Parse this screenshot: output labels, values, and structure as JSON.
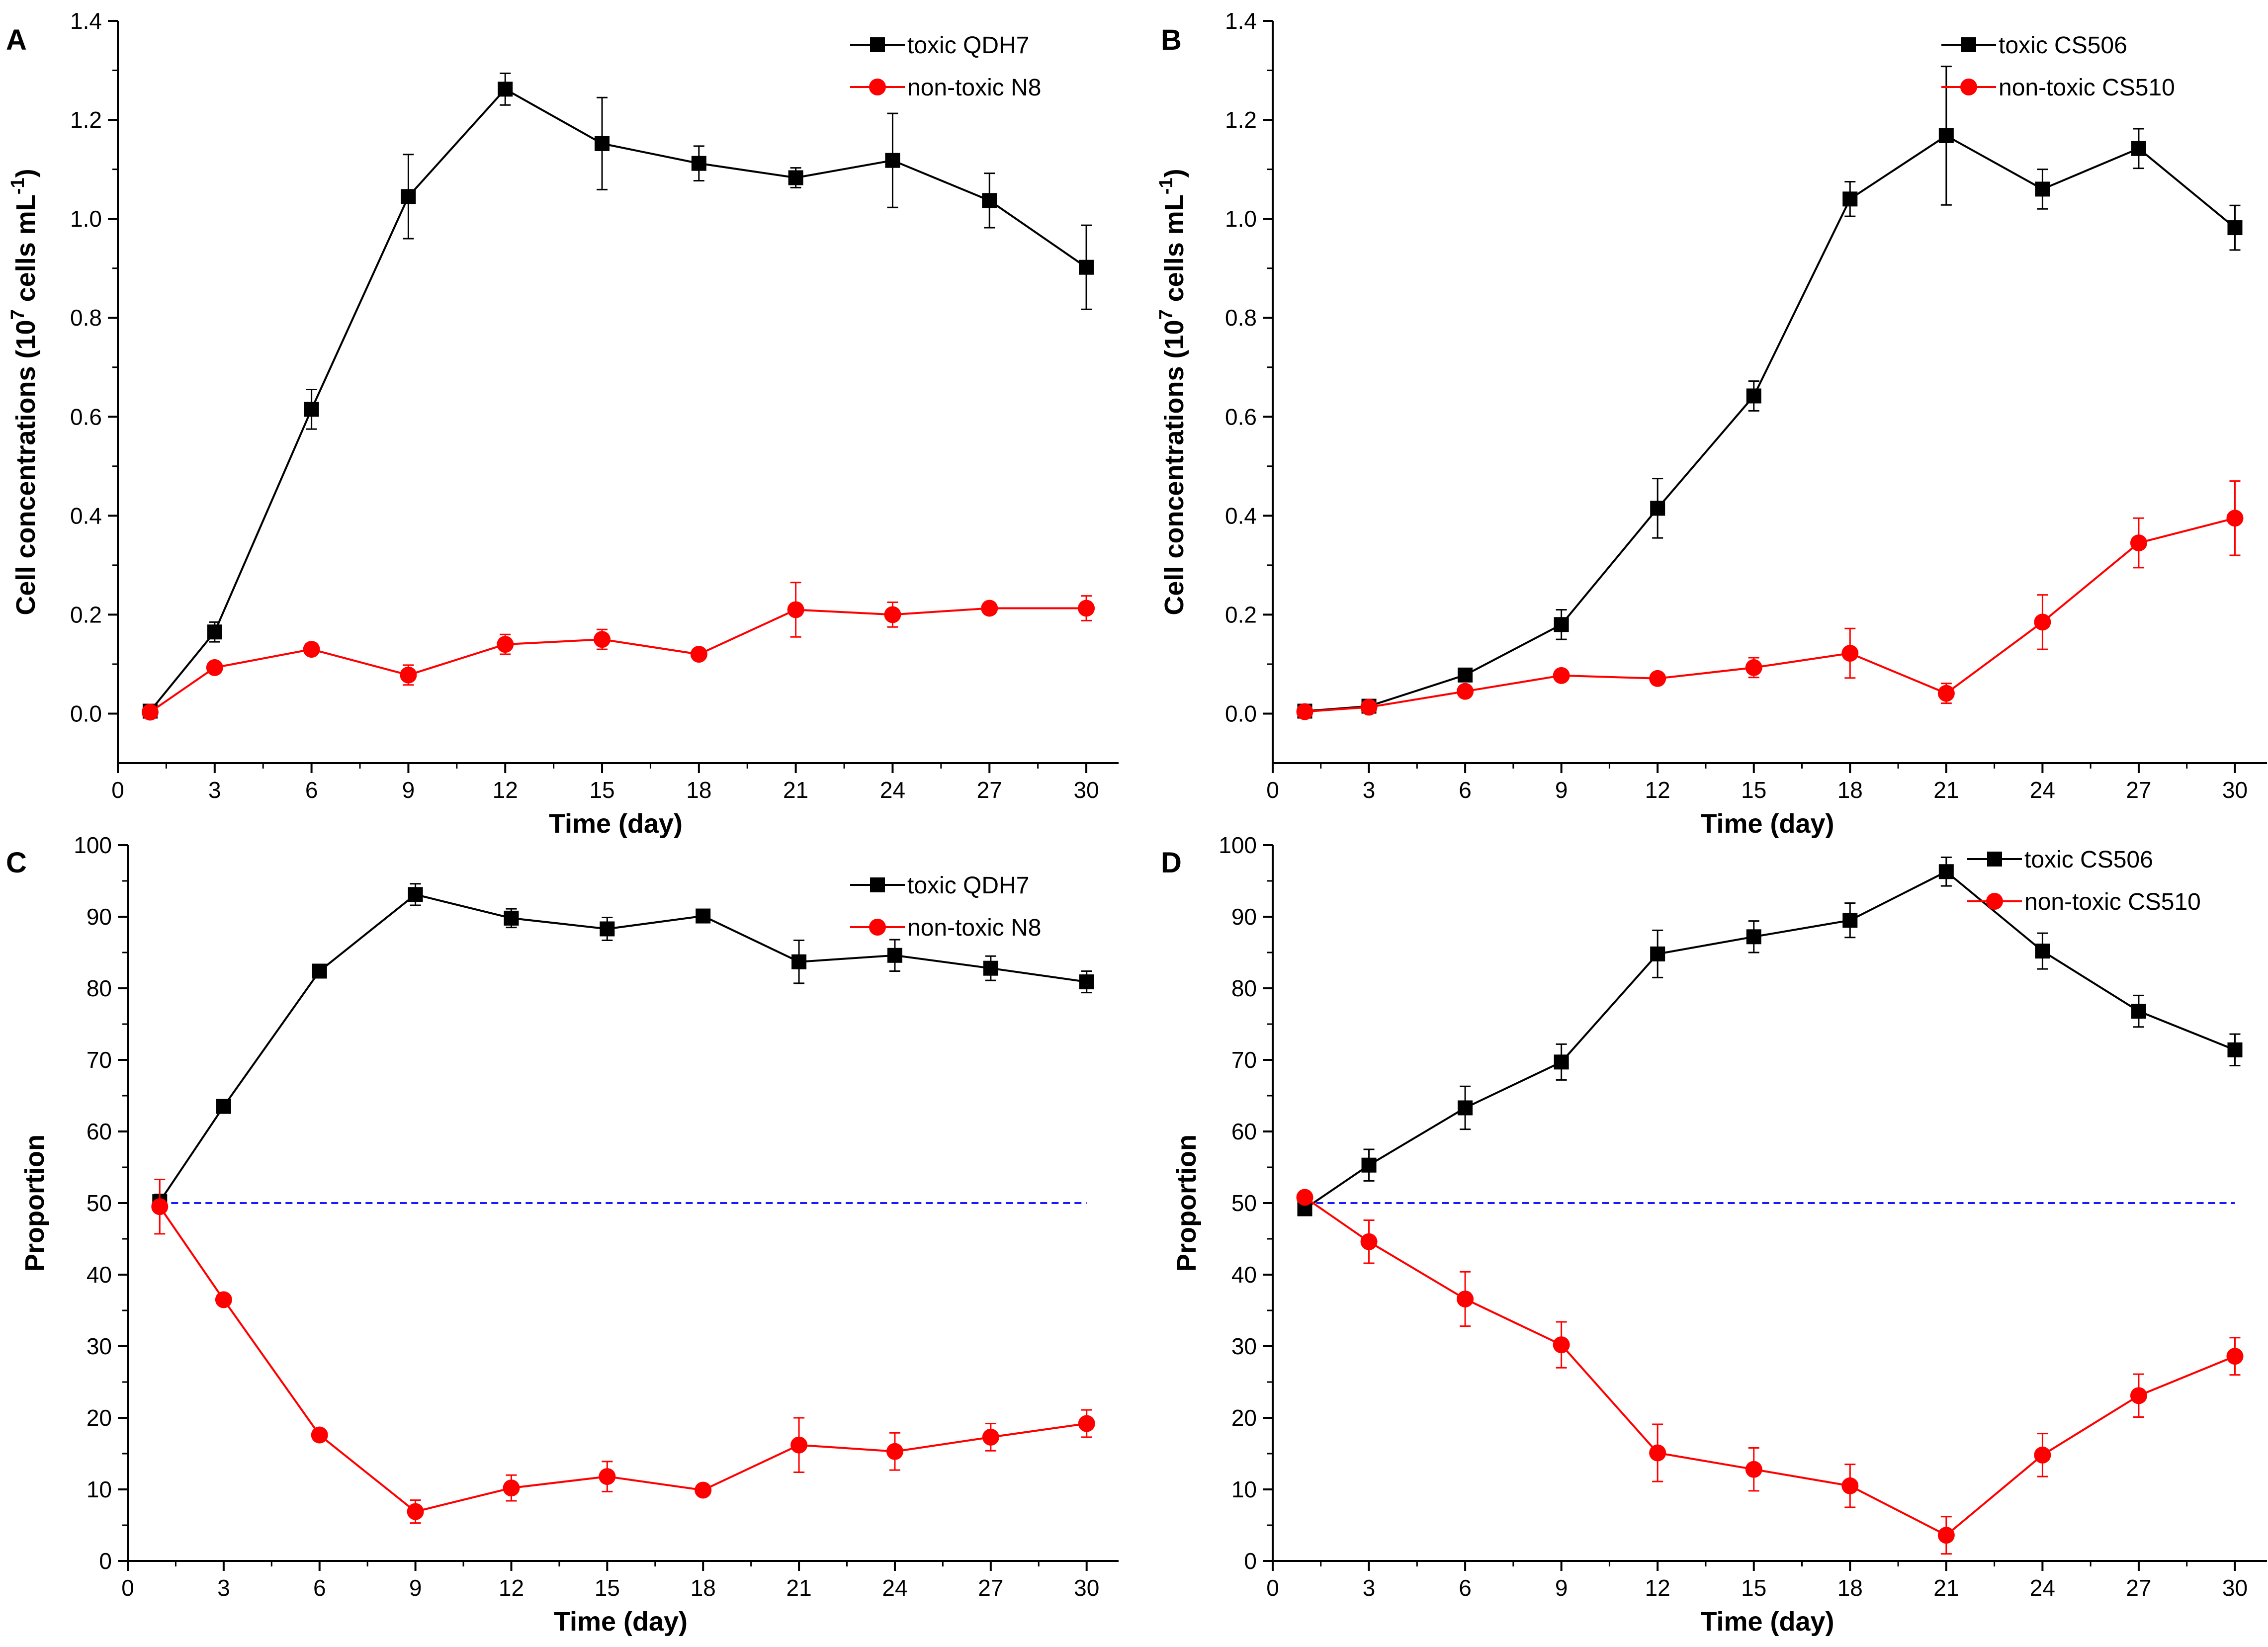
{
  "chart_data": [
    {
      "panel": "A",
      "type": "line",
      "xlabel": "Time (day)",
      "ylabel": "Cell concentrations (10",
      "ylabel_sup": "7",
      "ylabel_unit": " cells mL",
      "ylabel_unit_sup": "-1",
      "ylabel_close": ")",
      "x": [
        1,
        3,
        6,
        9,
        12,
        15,
        18,
        21,
        24,
        27,
        30
      ],
      "xticks": [
        "0",
        "3",
        "6",
        "9",
        "12",
        "15",
        "18",
        "21",
        "24",
        "27",
        "30"
      ],
      "xtick_values": [
        0,
        3,
        6,
        9,
        12,
        15,
        18,
        21,
        24,
        27,
        30
      ],
      "yticks": [
        "0.0",
        "0.2",
        "0.4",
        "0.6",
        "0.8",
        "1.0",
        "1.2",
        "1.4"
      ],
      "ytick_values": [
        0,
        0.2,
        0.4,
        0.6,
        0.8,
        1.0,
        1.2,
        1.4
      ],
      "xlim": [
        0,
        31
      ],
      "ylim": [
        -0.1,
        1.4
      ],
      "legend_position": "top-right",
      "series": [
        {
          "name": "toxic QDH7",
          "color": "#000000",
          "marker": "square",
          "values": [
            0.005,
            0.165,
            0.615,
            1.045,
            1.262,
            1.152,
            1.112,
            1.083,
            1.118,
            1.037,
            0.902
          ],
          "errors": [
            0.005,
            0.02,
            0.04,
            0.085,
            0.032,
            0.093,
            0.035,
            0.02,
            0.095,
            0.055,
            0.085
          ]
        },
        {
          "name": "non-toxic N8",
          "color": "#ff0000",
          "marker": "circle",
          "values": [
            0.003,
            0.093,
            0.13,
            0.078,
            0.14,
            0.15,
            0.12,
            0.21,
            0.2,
            0.213,
            0.213
          ],
          "errors": [
            0.005,
            0.008,
            0.01,
            0.02,
            0.02,
            0.02,
            0.008,
            0.055,
            0.025,
            0.012,
            0.025
          ]
        }
      ]
    },
    {
      "panel": "B",
      "type": "line",
      "xlabel": "Time (day)",
      "ylabel": "Cell concentrations (10",
      "ylabel_sup": "7",
      "ylabel_unit": " cells mL",
      "ylabel_unit_sup": "-1",
      "ylabel_close": ")",
      "x": [
        1,
        3,
        6,
        9,
        12,
        15,
        18,
        21,
        24,
        27,
        30
      ],
      "xticks": [
        "0",
        "3",
        "6",
        "9",
        "12",
        "15",
        "18",
        "21",
        "24",
        "27",
        "30"
      ],
      "xtick_values": [
        0,
        3,
        6,
        9,
        12,
        15,
        18,
        21,
        24,
        27,
        30
      ],
      "yticks": [
        "0.0",
        "0.2",
        "0.4",
        "0.6",
        "0.8",
        "1.0",
        "1.2",
        "1.4"
      ],
      "ytick_values": [
        0,
        0.2,
        0.4,
        0.6,
        0.8,
        1.0,
        1.2,
        1.4
      ],
      "xlim": [
        0,
        31
      ],
      "ylim": [
        -0.1,
        1.4
      ],
      "legend_position": "top-right",
      "series": [
        {
          "name": "toxic CS506",
          "color": "#000000",
          "marker": "square",
          "values": [
            0.005,
            0.015,
            0.078,
            0.18,
            0.415,
            0.642,
            1.04,
            1.168,
            1.06,
            1.142,
            0.982
          ],
          "errors": [
            0.004,
            0.005,
            0.01,
            0.03,
            0.06,
            0.03,
            0.035,
            0.14,
            0.04,
            0.04,
            0.045
          ]
        },
        {
          "name": "non-toxic CS510",
          "color": "#ff0000",
          "marker": "circle",
          "values": [
            0.004,
            0.013,
            0.045,
            0.077,
            0.071,
            0.093,
            0.122,
            0.041,
            0.185,
            0.345,
            0.395
          ],
          "errors": [
            0.004,
            0.005,
            0.01,
            0.008,
            0.008,
            0.02,
            0.05,
            0.02,
            0.055,
            0.05,
            0.075
          ]
        }
      ]
    },
    {
      "panel": "C",
      "type": "line",
      "xlabel": "Time (day)",
      "ylabel": "Proportion",
      "x": [
        1,
        3,
        6,
        9,
        12,
        15,
        18,
        21,
        24,
        27,
        30
      ],
      "xticks": [
        "0",
        "3",
        "6",
        "9",
        "12",
        "15",
        "18",
        "21",
        "24",
        "27",
        "30"
      ],
      "xtick_values": [
        0,
        3,
        6,
        9,
        12,
        15,
        18,
        21,
        24,
        27,
        30
      ],
      "yticks": [
        "0",
        "10",
        "20",
        "30",
        "40",
        "50",
        "60",
        "70",
        "80",
        "90",
        "100"
      ],
      "ytick_values": [
        0,
        10,
        20,
        30,
        40,
        50,
        60,
        70,
        80,
        90,
        100
      ],
      "xlim": [
        0,
        31
      ],
      "ylim": [
        0,
        100
      ],
      "reference_line": 50,
      "legend_position": "top-right",
      "series": [
        {
          "name": "toxic QDH7",
          "color": "#000000",
          "marker": "square",
          "values": [
            50.2,
            63.5,
            82.4,
            93.1,
            89.8,
            88.3,
            90.1,
            83.7,
            84.6,
            82.8,
            80.9
          ],
          "errors": [
            1.0,
            0.7,
            0.7,
            1.5,
            1.3,
            1.6,
            0.6,
            3.0,
            2.2,
            1.7,
            1.5
          ]
        },
        {
          "name": "non-toxic N8",
          "color": "#ff0000",
          "marker": "circle",
          "values": [
            49.5,
            36.5,
            17.6,
            6.9,
            10.2,
            11.8,
            9.9,
            16.2,
            15.3,
            17.3,
            19.2
          ],
          "errors": [
            3.8,
            0.6,
            0.6,
            1.6,
            1.8,
            2.1,
            0.6,
            3.8,
            2.6,
            1.9,
            1.9
          ]
        }
      ]
    },
    {
      "panel": "D",
      "type": "line",
      "xlabel": "Time (day)",
      "ylabel": "Proportion",
      "x": [
        1,
        3,
        6,
        9,
        12,
        15,
        18,
        21,
        24,
        27,
        30
      ],
      "xticks": [
        "0",
        "3",
        "6",
        "9",
        "12",
        "15",
        "18",
        "21",
        "24",
        "27",
        "30"
      ],
      "xtick_values": [
        0,
        3,
        6,
        9,
        12,
        15,
        18,
        21,
        24,
        27,
        30
      ],
      "yticks": [
        "0",
        "10",
        "20",
        "30",
        "40",
        "50",
        "60",
        "70",
        "80",
        "90",
        "100"
      ],
      "ytick_values": [
        0,
        10,
        20,
        30,
        40,
        50,
        60,
        70,
        80,
        90,
        100
      ],
      "xlim": [
        0,
        31
      ],
      "ylim": [
        0,
        100
      ],
      "reference_line": 50,
      "legend_position": "top-right",
      "series": [
        {
          "name": "toxic CS506",
          "color": "#000000",
          "marker": "square",
          "values": [
            49.2,
            55.3,
            63.3,
            69.7,
            84.8,
            87.2,
            89.5,
            96.3,
            85.2,
            76.8,
            71.4
          ],
          "errors": [
            0.6,
            2.2,
            3.0,
            2.5,
            3.3,
            2.2,
            2.4,
            2.0,
            2.5,
            2.2,
            2.2
          ]
        },
        {
          "name": "non-toxic CS510",
          "color": "#ff0000",
          "marker": "circle",
          "values": [
            50.8,
            44.6,
            36.6,
            30.2,
            15.1,
            12.8,
            10.5,
            3.6,
            14.8,
            23.1,
            28.6
          ],
          "errors": [
            0.6,
            3.0,
            3.8,
            3.2,
            4.0,
            3.0,
            3.0,
            2.6,
            3.0,
            3.0,
            2.6
          ]
        }
      ]
    }
  ]
}
